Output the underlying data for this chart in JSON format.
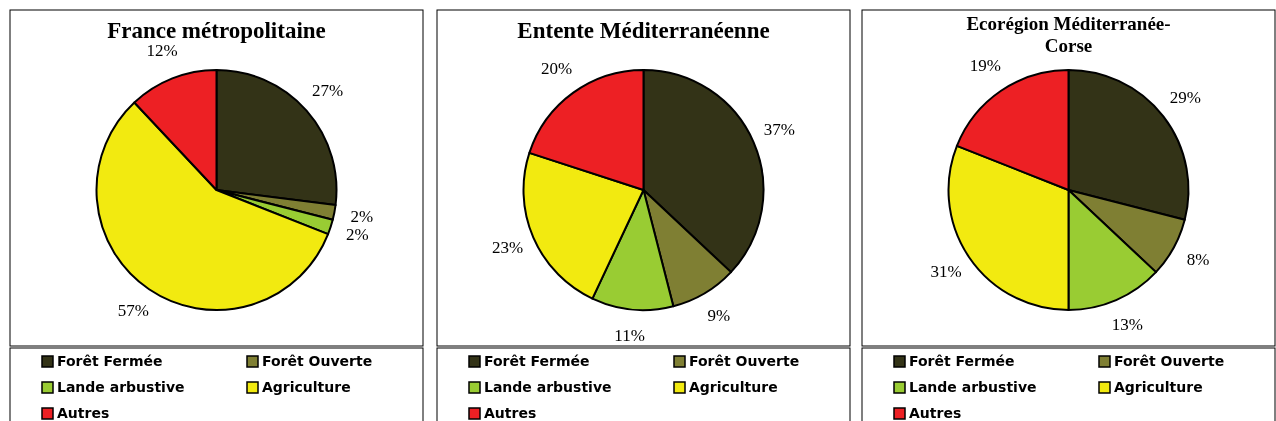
{
  "chart_data": [
    {
      "type": "pie",
      "title": "France métropolitaine",
      "categories": [
        "Forêt Fermée",
        "Forêt Ouverte",
        "Lande arbustive",
        "Agriculture",
        "Autres"
      ],
      "values": [
        27,
        2,
        2,
        57,
        12
      ],
      "value_labels": [
        "27%",
        "2%",
        "2%",
        "57%",
        "12%"
      ],
      "colors": [
        "#333317",
        "#7f7f33",
        "#99cc33",
        "#f2ea10",
        "#ed2024"
      ],
      "legend": "bottom"
    },
    {
      "type": "pie",
      "title": "Entente Méditerranéenne",
      "categories": [
        "Forêt Fermée",
        "Forêt Ouverte",
        "Lande arbustive",
        "Agriculture",
        "Autres"
      ],
      "values": [
        37,
        9,
        11,
        23,
        20
      ],
      "value_labels": [
        "37%",
        "9%",
        "11%",
        "23%",
        "20%"
      ],
      "colors": [
        "#333317",
        "#7f7f33",
        "#99cc33",
        "#f2ea10",
        "#ed2024"
      ],
      "legend": "bottom"
    },
    {
      "type": "pie",
      "title": "Ecorégion Méditerranée-Corse",
      "categories": [
        "Forêt Fermée",
        "Forêt Ouverte",
        "Lande arbustive",
        "Agriculture",
        "Autres"
      ],
      "values": [
        29,
        8,
        13,
        31,
        19
      ],
      "value_labels": [
        "29%",
        "8%",
        "13%",
        "31%",
        "19%"
      ],
      "colors": [
        "#333317",
        "#7f7f33",
        "#99cc33",
        "#f2ea10",
        "#ed2024"
      ],
      "legend": "bottom"
    }
  ]
}
